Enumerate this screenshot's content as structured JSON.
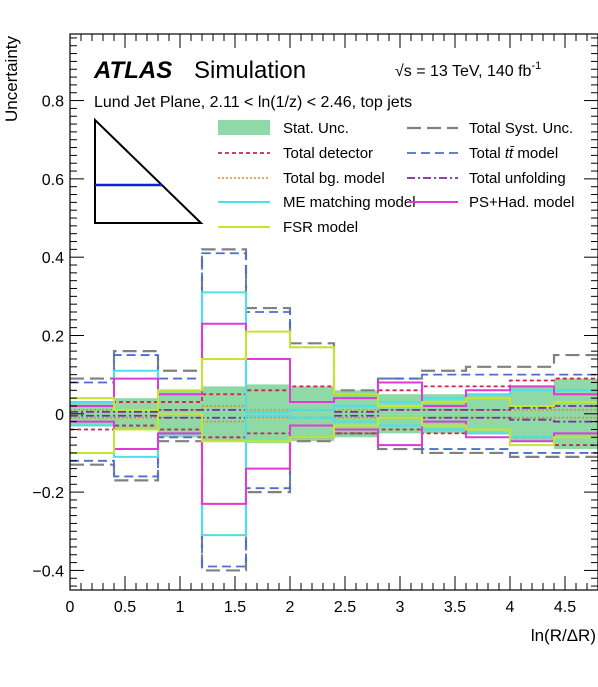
{
  "chart_data": {
    "type": "line",
    "experiment": "ATLAS",
    "subtitle": "Simulation",
    "energy_label": "√s = 13 TeV, 140 fb",
    "energy_sup": "-1",
    "region_label": "Lund Jet Plane, 2.11 < ln(1/z) < 2.46, top jets",
    "ylabel": "Uncertainty",
    "xlabel": "ln(R/ΔR)",
    "xlim": [
      0,
      4.8
    ],
    "ylim": [
      -0.45,
      0.97
    ],
    "xticks": [
      "0",
      "0.5",
      "1",
      "1.5",
      "2",
      "2.5",
      "3",
      "3.5",
      "4",
      "4.5"
    ],
    "xtick_values": [
      0,
      0.5,
      1,
      1.5,
      2,
      2.5,
      3,
      3.5,
      4,
      4.5
    ],
    "yticks": [
      "−0.4",
      "−0.2",
      "0",
      "0.2",
      "0.4",
      "0.6",
      "0.8"
    ],
    "ytick_values": [
      -0.4,
      -0.2,
      0,
      0.2,
      0.4,
      0.6,
      0.8
    ],
    "bin_edges": [
      0,
      0.4,
      0.8,
      1.2,
      1.6,
      2.0,
      2.4,
      2.8,
      3.2,
      3.6,
      4.0,
      4.4,
      4.8
    ],
    "stat_unc": [
      0.03,
      0.04,
      0.06,
      0.07,
      0.075,
      0.07,
      0.06,
      0.05,
      0.05,
      0.05,
      0.07,
      0.09
    ],
    "series": [
      {
        "name": "Total Syst. Unc.",
        "color": "#808080",
        "dash": "14,6",
        "width": 2.2,
        "up": [
          0.09,
          0.16,
          0.11,
          0.42,
          0.27,
          0.18,
          0.06,
          0.09,
          0.11,
          0.12,
          0.12,
          0.15
        ],
        "down": [
          -0.13,
          -0.17,
          -0.07,
          -0.4,
          -0.2,
          -0.07,
          -0.05,
          -0.09,
          -0.1,
          -0.1,
          -0.11,
          -0.11
        ]
      },
      {
        "name": "Total detector",
        "color": "#d0234a",
        "dash": "4,3",
        "width": 1.8,
        "up": [
          0.03,
          0.03,
          0.03,
          0.05,
          0.06,
          0.07,
          0.05,
          0.06,
          0.07,
          0.07,
          0.085,
          0.09
        ],
        "down": [
          -0.04,
          -0.03,
          -0.04,
          -0.06,
          -0.05,
          -0.06,
          -0.05,
          -0.04,
          -0.05,
          -0.05,
          -0.06,
          -0.08
        ]
      },
      {
        "name": "Total t t̄ model",
        "label_main": "Total ",
        "label_tt": "tt̄",
        "label_tail": " model",
        "color": "#4a6fd0",
        "dash": "9,5",
        "width": 1.8,
        "up": [
          0.08,
          0.15,
          0.09,
          0.41,
          0.26,
          0.17,
          0.05,
          0.09,
          0.1,
          0.1,
          0.1,
          0.1
        ],
        "down": [
          -0.12,
          -0.16,
          -0.06,
          -0.39,
          -0.19,
          -0.06,
          -0.04,
          -0.08,
          -0.09,
          -0.09,
          -0.1,
          -0.1
        ]
      },
      {
        "name": "Total bg. model",
        "color": "#e8891e",
        "dash": "2,2",
        "width": 1.6,
        "up": [
          0.01,
          0.01,
          0.01,
          0.02,
          0.01,
          0.01,
          0.01,
          0.01,
          0.01,
          0.01,
          0.01,
          0.01
        ],
        "down": [
          -0.01,
          -0.01,
          -0.01,
          -0.02,
          -0.01,
          -0.01,
          -0.01,
          -0.01,
          -0.01,
          -0.01,
          -0.01,
          -0.01
        ]
      },
      {
        "name": "Total unfolding",
        "color": "#7d2aa3",
        "dash": "8,3,2,3",
        "width": 1.8,
        "up": [
          0.005,
          0.005,
          0.01,
          0.01,
          0.005,
          0.01,
          0.005,
          0.01,
          0.01,
          0.01,
          0.015,
          0.02
        ],
        "down": [
          -0.005,
          -0.005,
          -0.01,
          -0.01,
          -0.005,
          -0.01,
          -0.005,
          -0.01,
          -0.01,
          -0.01,
          -0.015,
          -0.02
        ]
      },
      {
        "name": "ME matching model",
        "color": "#4de0e8",
        "dash": "",
        "width": 2.0,
        "up": [
          0.03,
          0.11,
          0.05,
          0.31,
          0.005,
          0.01,
          0.02,
          0.03,
          0.04,
          0.05,
          0.06,
          0.06
        ],
        "down": [
          -0.03,
          -0.11,
          -0.05,
          -0.31,
          -0.005,
          -0.01,
          -0.02,
          -0.03,
          -0.04,
          -0.05,
          -0.06,
          -0.06
        ]
      },
      {
        "name": "PS+Had. model",
        "color": "#e03ad6",
        "dash": "",
        "width": 2.0,
        "up": [
          0.02,
          0.09,
          0.05,
          0.23,
          0.14,
          0.03,
          0.04,
          0.08,
          0.02,
          0.06,
          0.07,
          0.05
        ],
        "down": [
          -0.02,
          -0.09,
          -0.05,
          -0.23,
          -0.14,
          -0.03,
          -0.04,
          -0.08,
          -0.02,
          -0.06,
          -0.07,
          -0.05
        ]
      },
      {
        "name": "FSR model",
        "color": "#c4e630",
        "dash": "",
        "width": 2.0,
        "up": [
          0.04,
          0.01,
          0.06,
          0.14,
          0.21,
          0.17,
          0.05,
          0.02,
          0.03,
          0.04,
          0.02,
          0.03
        ],
        "down": [
          -0.1,
          -0.04,
          0.0,
          -0.07,
          -0.07,
          -0.06,
          -0.03,
          -0.01,
          -0.03,
          -0.04,
          -0.08,
          -0.06
        ]
      }
    ],
    "legend": {
      "left": [
        "Stat. Unc.",
        "Total detector",
        "Total bg. model",
        "ME matching model",
        "FSR model"
      ],
      "right": [
        "Total Syst. Unc.",
        "Total t t̄ model",
        "Total unfolding",
        "PS+Had. model"
      ]
    },
    "stat_color": "#8ed9a6",
    "inset": {
      "region": "triangle",
      "band": "blue horizontal line",
      "band_color": "#0a1fd6"
    }
  }
}
